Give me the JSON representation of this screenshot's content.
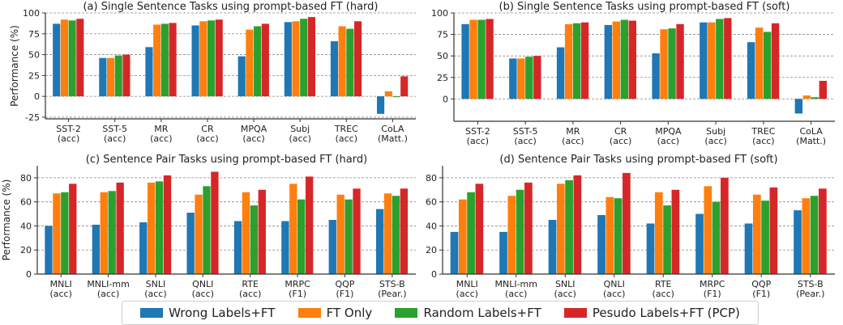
{
  "chart_data": [
    {
      "type": "bar",
      "title": "(a) Single Sentence Tasks using prompt-based FT (hard)",
      "ylabel": "Performance (%)",
      "ylim": [
        -27,
        100
      ],
      "yticks": [
        -25,
        0,
        25,
        50,
        75,
        100
      ],
      "categories": [
        "SST-2\n(acc)",
        "SST-5\n(acc)",
        "MR\n(acc)",
        "CR\n(acc)",
        "MPQA\n(acc)",
        "Subj\n(acc)",
        "TREC\n(acc)",
        "CoLA\n(Matt.)"
      ],
      "series": [
        {
          "name": "Wrong Labels+FT",
          "values": [
            87,
            46,
            59,
            85,
            48,
            89,
            66,
            -21
          ]
        },
        {
          "name": "FT Only",
          "values": [
            92,
            46,
            86,
            90,
            80,
            90,
            84,
            6
          ]
        },
        {
          "name": "Random Labels+FT",
          "values": [
            91,
            49,
            87,
            91,
            84,
            93,
            81,
            -1
          ]
        },
        {
          "name": "Pesudo Labels+FT (PCP)",
          "values": [
            93,
            50,
            88,
            92,
            87,
            95,
            90,
            24
          ]
        }
      ]
    },
    {
      "type": "bar",
      "title": "(b) Single Sentence Tasks using prompt-based FT (soft)",
      "ylabel": "",
      "ylim": [
        -26,
        100
      ],
      "yticks": [
        0,
        25,
        50,
        75,
        100
      ],
      "categories": [
        "SST-2\n(acc)",
        "SST-5\n(acc)",
        "MR\n(acc)",
        "CR\n(acc)",
        "MPQA\n(acc)",
        "Subj\n(acc)",
        "TREC\n(acc)",
        "CoLA\n(Matt.)"
      ],
      "series": [
        {
          "name": "Wrong Labels+FT",
          "values": [
            87,
            47,
            60,
            86,
            53,
            89,
            66,
            -17
          ]
        },
        {
          "name": "FT Only",
          "values": [
            92,
            47,
            87,
            90,
            81,
            89,
            83,
            4
          ]
        },
        {
          "name": "Random Labels+FT",
          "values": [
            92,
            49,
            88,
            92,
            82,
            93,
            78,
            2
          ]
        },
        {
          "name": "Pesudo Labels+FT (PCP)",
          "values": [
            93,
            50,
            89,
            91,
            87,
            94,
            88,
            21
          ]
        }
      ]
    },
    {
      "type": "bar",
      "title": "(c) Sentence Pair Tasks using prompt-based FT (hard)",
      "ylabel": "Performance (%)",
      "ylim": [
        0,
        90
      ],
      "yticks": [
        0,
        20,
        40,
        60,
        80
      ],
      "categories": [
        "MNLI\n(acc)",
        "MNLI-mm\n(acc)",
        "SNLI\n(acc)",
        "QNLI\n(acc)",
        "RTE\n(acc)",
        "MRPC\n(F1)",
        "QQP\n(F1)",
        "STS-B\n(Pear.)"
      ],
      "series": [
        {
          "name": "Wrong Labels+FT",
          "values": [
            40,
            41,
            43,
            51,
            44,
            44,
            45,
            54
          ]
        },
        {
          "name": "FT Only",
          "values": [
            67,
            68,
            76,
            66,
            68,
            75,
            66,
            67
          ]
        },
        {
          "name": "Random Labels+FT",
          "values": [
            68,
            69,
            77,
            73,
            57,
            62,
            62,
            65
          ]
        },
        {
          "name": "Pesudo Labels+FT (PCP)",
          "values": [
            75,
            76,
            82,
            85,
            70,
            81,
            71,
            71
          ]
        }
      ]
    },
    {
      "type": "bar",
      "title": "(d) Sentence Pair Tasks using prompt-based FT (soft)",
      "ylabel": "",
      "ylim": [
        0,
        90
      ],
      "yticks": [
        0,
        20,
        40,
        60,
        80
      ],
      "categories": [
        "MNLI\n(acc)",
        "MNLI-mm\n(acc)",
        "SNLI\n(acc)",
        "QNLI\n(acc)",
        "RTE\n(acc)",
        "MRPC\n(F1)",
        "QQP\n(F1)",
        "STS-B\n(Pear.)"
      ],
      "series": [
        {
          "name": "Wrong Labels+FT",
          "values": [
            35,
            35,
            45,
            49,
            42,
            50,
            42,
            53
          ]
        },
        {
          "name": "FT Only",
          "values": [
            62,
            65,
            75,
            64,
            68,
            73,
            66,
            63
          ]
        },
        {
          "name": "Random Labels+FT",
          "values": [
            68,
            70,
            78,
            63,
            57,
            60,
            61,
            65
          ]
        },
        {
          "name": "Pesudo Labels+FT (PCP)",
          "values": [
            75,
            76,
            82,
            84,
            70,
            80,
            72,
            71
          ]
        }
      ]
    }
  ],
  "legend": {
    "placement": "bottom-center",
    "items": [
      {
        "label": "Wrong Labels+FT",
        "color": "#1f77b4"
      },
      {
        "label": "FT Only",
        "color": "#ff7f0e"
      },
      {
        "label": "Random Labels+FT",
        "color": "#2ca02c"
      },
      {
        "label": "Pesudo Labels+FT (PCP)",
        "color": "#d62728"
      }
    ]
  }
}
